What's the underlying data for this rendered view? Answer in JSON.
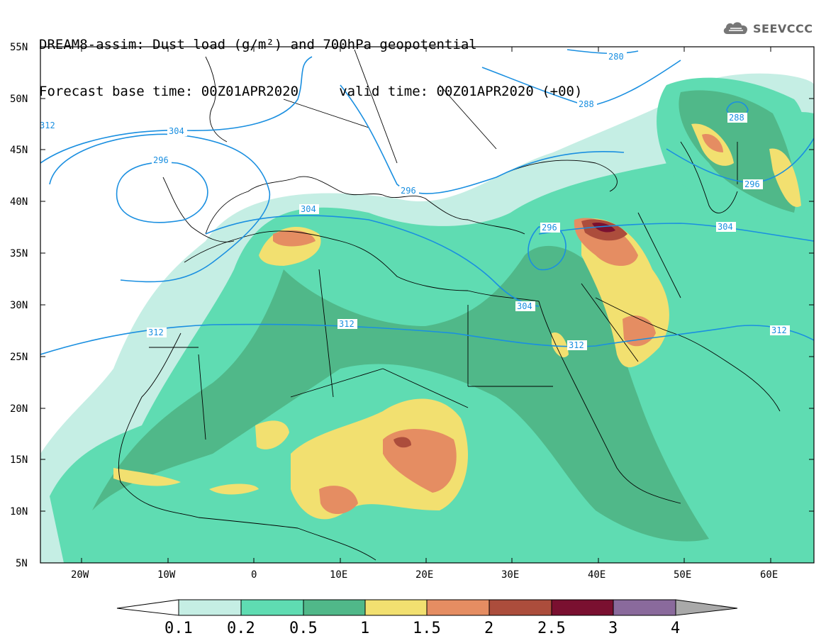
{
  "title": {
    "line1": "DREAM8-assim: Dust load (g/m²) and 700hPa geopotential",
    "line2": "Forecast base time: 00Z01APR2020     valid time: 00Z01APR2020 (+00)"
  },
  "logo": {
    "icon": "cloud-icon",
    "text": "SEEVCCC"
  },
  "axes": {
    "lat_labels": [
      "55N",
      "50N",
      "45N",
      "40N",
      "35N",
      "30N",
      "25N",
      "20N",
      "15N",
      "10N",
      "5N"
    ],
    "lon_labels": [
      "20W",
      "10W",
      "0",
      "10E",
      "20E",
      "30E",
      "40E",
      "50E",
      "60E"
    ]
  },
  "contour_labels": [
    "312",
    "304",
    "296",
    "304",
    "280",
    "288",
    "288",
    "296",
    "296",
    "304",
    "296",
    "304",
    "304",
    "312",
    "312",
    "312",
    "312"
  ],
  "colorbar": {
    "labels": [
      "0.1",
      "0.2",
      "0.5",
      "1",
      "1.5",
      "2",
      "2.5",
      "3",
      "4"
    ],
    "colors": [
      "#ffffff",
      "#c5eee4",
      "#5fdcb2",
      "#50b889",
      "#f2e070",
      "#e58d62",
      "#ac4d3c",
      "#7a1030",
      "#8a6a9c",
      "#a9a9a9"
    ]
  },
  "map_colors": {
    "level1": "#c5eee4",
    "level2": "#5fdcb2",
    "level3": "#50b889",
    "level4": "#f2e070",
    "level5": "#e58d62",
    "level6": "#ac4d3c",
    "level7": "#7a1030",
    "contour": "#1a8fe0",
    "borders": "#000000"
  }
}
